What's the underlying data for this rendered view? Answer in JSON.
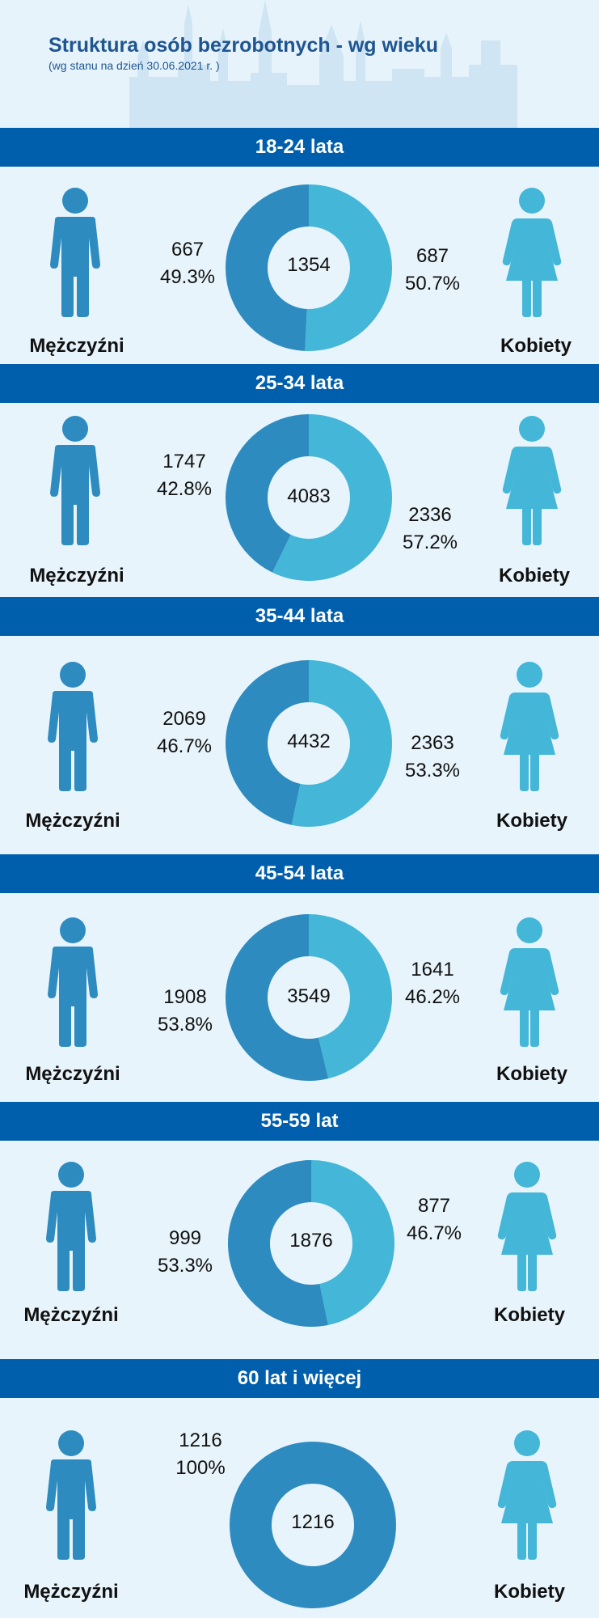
{
  "header": {
    "title": "Struktura osób bezrobotnych - wg wieku",
    "subtitle": "(wg stanu na dzień 30.06.2021 r. )"
  },
  "colors": {
    "men": "#2e8bc0",
    "women": "#44b6d8",
    "band": "#005fad"
  },
  "icons": {
    "men": "man-icon",
    "women": "woman-icon"
  },
  "chart_data": [
    {
      "type": "pie",
      "title": "18-24 lata",
      "total": "1354",
      "men_label": "Mężczyźni",
      "women_label": "Kobiety",
      "slices": [
        {
          "name": "Mężczyźni",
          "value": 667,
          "value_text": "667",
          "percent_text": "49.3%"
        },
        {
          "name": "Kobiety",
          "value": 687,
          "value_text": "687",
          "percent_text": "50.7%"
        }
      ]
    },
    {
      "type": "pie",
      "title": "25-34 lata",
      "total": "4083",
      "men_label": "Mężczyźni",
      "women_label": "Kobiety",
      "slices": [
        {
          "name": "Mężczyźni",
          "value": 1747,
          "value_text": "1747",
          "percent_text": "42.8%"
        },
        {
          "name": "Kobiety",
          "value": 2336,
          "value_text": "2336",
          "percent_text": "57.2%"
        }
      ]
    },
    {
      "type": "pie",
      "title": "35-44 lata",
      "total": "4432",
      "men_label": "Mężczyźni",
      "women_label": "Kobiety",
      "slices": [
        {
          "name": "Mężczyźni",
          "value": 2069,
          "value_text": "2069",
          "percent_text": "46.7%"
        },
        {
          "name": "Kobiety",
          "value": 2363,
          "value_text": "2363",
          "percent_text": "53.3%"
        }
      ]
    },
    {
      "type": "pie",
      "title": "45-54 lata",
      "total": "3549",
      "men_label": "Mężczyźni",
      "women_label": "Kobiety",
      "slices": [
        {
          "name": "Mężczyźni",
          "value": 1908,
          "value_text": "1908",
          "percent_text": "53.8%"
        },
        {
          "name": "Kobiety",
          "value": 1641,
          "value_text": "1641",
          "percent_text": "46.2%"
        }
      ]
    },
    {
      "type": "pie",
      "title": "55-59 lat",
      "total": "1876",
      "men_label": "Mężczyźni",
      "women_label": "Kobiety",
      "slices": [
        {
          "name": "Mężczyźni",
          "value": 999,
          "value_text": "999",
          "percent_text": "53.3%"
        },
        {
          "name": "Kobiety",
          "value": 877,
          "value_text": "877",
          "percent_text": "46.7%"
        }
      ]
    },
    {
      "type": "pie",
      "title": "60 lat i więcej",
      "total": "1216",
      "men_label": "Mężczyźni",
      "women_label": "Kobiety",
      "slices": [
        {
          "name": "Mężczyźni",
          "value": 1216,
          "value_text": "1216",
          "percent_text": "100%"
        }
      ]
    }
  ]
}
